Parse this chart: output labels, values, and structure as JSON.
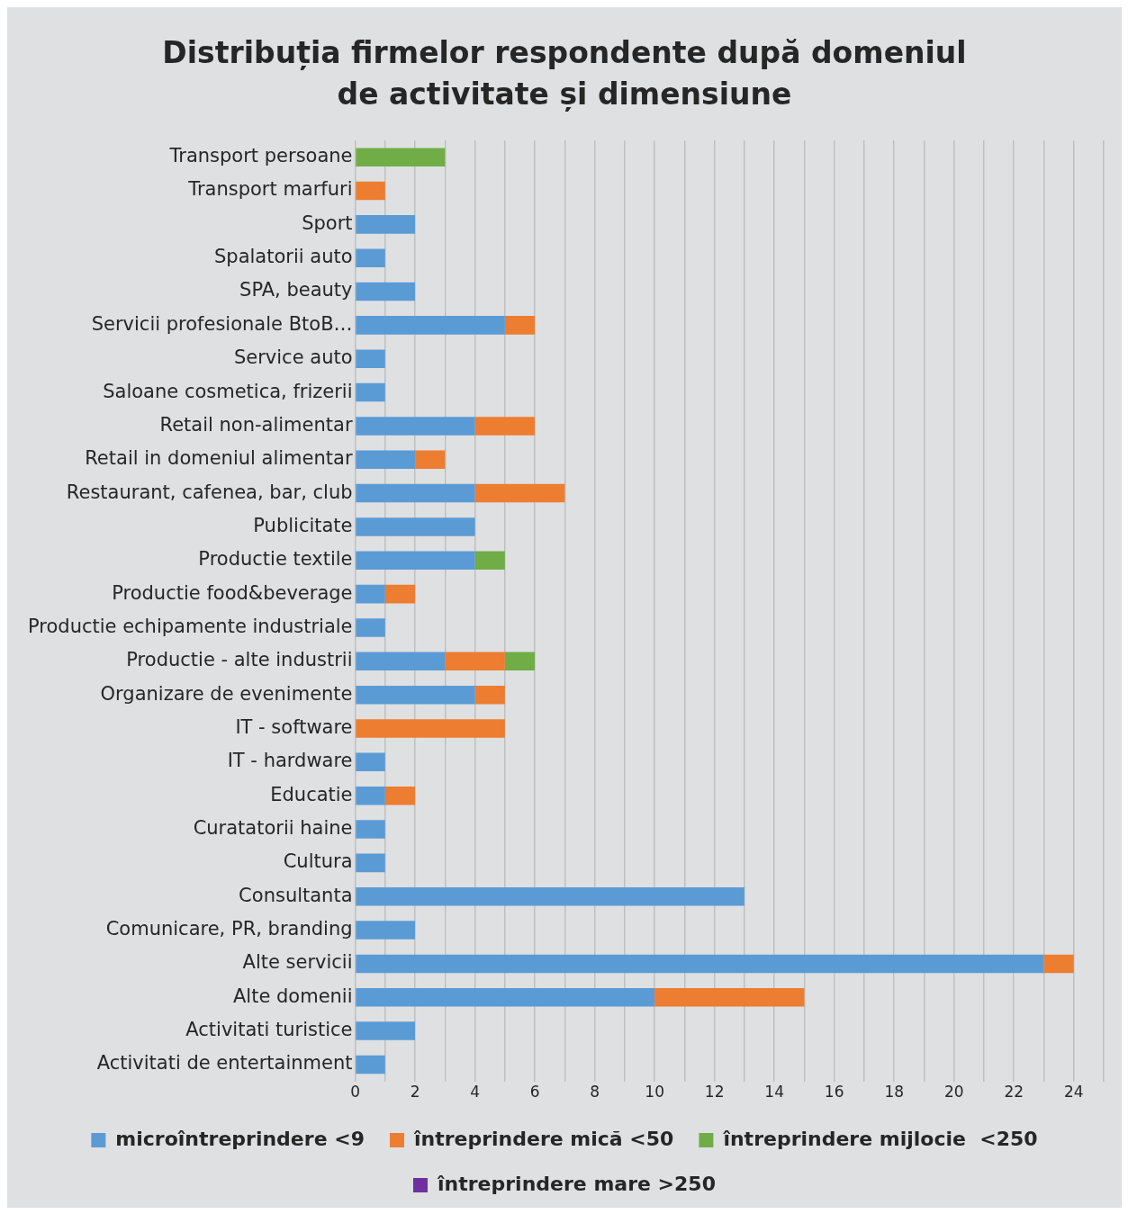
{
  "chart_data": {
    "type": "bar",
    "orientation": "horizontal",
    "stacked": true,
    "title": "Distribuția firmelor respondente după domeniul de activitate și dimensiune",
    "categories": [
      "Transport persoane",
      "Transport marfuri",
      "Sport",
      "Spalatorii auto",
      "SPA, beauty",
      "Servicii profesionale BtoB…",
      "Service auto",
      "Saloane cosmetica, frizerii",
      "Retail non-alimentar",
      "Retail in domeniul alimentar",
      "Restaurant, cafenea, bar, club",
      "Publicitate",
      "Productie textile",
      "Productie food&beverage",
      "Productie echipamente industriale",
      "Productie - alte industrii",
      "Organizare de evenimente",
      "IT - software",
      "IT - hardware",
      "Educatie",
      "Curatatorii haine",
      "Cultura",
      "Consultanta",
      "Comunicare, PR, branding",
      "Alte servicii",
      "Alte domenii",
      "Activitati turistice",
      "Activitati de entertainment"
    ],
    "series": [
      {
        "name": "microîntreprindere <9",
        "color": "#5b9bd5",
        "values": [
          null,
          null,
          2,
          1,
          2,
          5,
          1,
          1,
          4,
          2,
          4,
          4,
          4,
          1,
          1,
          3,
          4,
          null,
          1,
          1,
          1,
          1,
          13,
          2,
          23,
          10,
          2,
          1
        ]
      },
      {
        "name": "întreprindere mică <50",
        "color": "#ed7d31",
        "values": [
          null,
          1,
          null,
          null,
          null,
          1,
          null,
          null,
          2,
          1,
          3,
          null,
          null,
          1,
          null,
          2,
          1,
          5,
          null,
          1,
          null,
          null,
          null,
          null,
          1,
          5,
          null,
          null
        ]
      },
      {
        "name": "întreprindere mijlocie  <250",
        "color": "#70ad47",
        "values": [
          3,
          null,
          null,
          null,
          null,
          null,
          null,
          null,
          null,
          null,
          null,
          null,
          1,
          null,
          null,
          1,
          null,
          null,
          null,
          null,
          null,
          null,
          null,
          null,
          null,
          null,
          null,
          null
        ]
      },
      {
        "name": "întreprindere mare >250",
        "color": "#7030a0",
        "values": [
          null,
          null,
          null,
          null,
          null,
          null,
          null,
          null,
          null,
          null,
          null,
          null,
          null,
          null,
          null,
          null,
          null,
          null,
          null,
          null,
          null,
          null,
          null,
          null,
          null,
          null,
          null,
          null
        ]
      }
    ],
    "xlim": [
      0,
      25
    ],
    "xticks": [
      0,
      {
        "value": 1,
        "label": null
      },
      2,
      {
        "value": 3,
        "label": null
      },
      4,
      {
        "value": 5,
        "label": null
      },
      6,
      {
        "value": 7,
        "label": null
      },
      8,
      {
        "value": 9,
        "label": null
      },
      10,
      {
        "value": 11,
        "label": null
      },
      12,
      {
        "value": 13,
        "label": null
      },
      14,
      {
        "value": 15,
        "label": null
      },
      16,
      {
        "value": 17,
        "label": null
      },
      18,
      {
        "value": 19,
        "label": null
      },
      20,
      {
        "value": 21,
        "label": null
      },
      22,
      {
        "value": 23,
        "label": null
      },
      24,
      {
        "value": 25,
        "label": null
      }
    ],
    "grid": "x",
    "legend": "bottom"
  }
}
